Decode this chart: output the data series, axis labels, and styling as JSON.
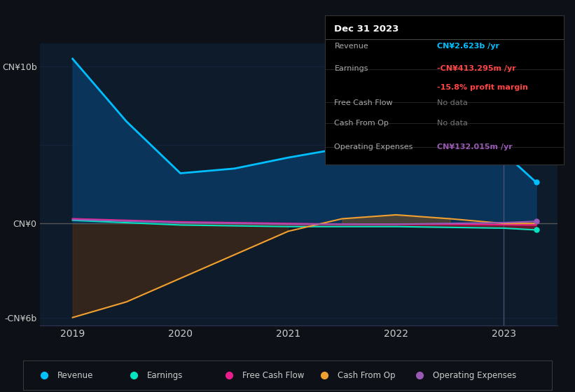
{
  "background_color": "#0d1117",
  "plot_bg_color": "#0d1b2a",
  "y_label_top": "CN¥10b",
  "y_label_bottom": "-CN¥6b",
  "x_ticks": [
    2019,
    2020,
    2021,
    2022,
    2023
  ],
  "years": [
    2019,
    2019.5,
    2020,
    2020.5,
    2021,
    2021.5,
    2022,
    2022.5,
    2023,
    2023.3
  ],
  "revenue": [
    10.5,
    6.5,
    3.2,
    3.5,
    4.2,
    4.8,
    5.3,
    4.9,
    4.5,
    2.623
  ],
  "earnings": [
    0.2,
    0.05,
    -0.1,
    -0.15,
    -0.2,
    -0.2,
    -0.2,
    -0.25,
    -0.3,
    -0.413
  ],
  "free_cash_flow": [
    0.3,
    0.2,
    0.1,
    0.05,
    0.0,
    -0.05,
    -0.05,
    -0.05,
    -0.08,
    -0.1
  ],
  "cash_from_op": [
    -6.0,
    -5.0,
    -3.5,
    -2.0,
    -0.5,
    0.3,
    0.55,
    0.3,
    0.0,
    0.0
  ],
  "operating_expenses": [
    0.25,
    0.15,
    0.05,
    0.0,
    -0.05,
    -0.05,
    -0.05,
    0.0,
    0.05,
    0.132
  ],
  "revenue_color": "#00bfff",
  "revenue_fill": "#0a3d6b",
  "earnings_color": "#00e5c0",
  "earnings_fill_neg": "#7b1c2e",
  "free_cash_flow_color": "#e91e8c",
  "cash_from_op_color": "#f0a030",
  "operating_expenses_color": "#9b59b6",
  "zero_line_color": "#555555",
  "grid_color": "#1e3050",
  "text_color": "#cccccc",
  "vline_x": 2023,
  "vline_color": "#333355",
  "info_box": {
    "title": "Dec 31 2023",
    "revenue_label": "Revenue",
    "revenue_value": "CN¥2.623b /yr",
    "revenue_value_color": "#00bfff",
    "earnings_label": "Earnings",
    "earnings_value": "-CN¥413.295m /yr",
    "earnings_value_color": "#ff4444",
    "profit_margin": "-15.8% profit margin",
    "profit_margin_color": "#ff4444",
    "fcf_label": "Free Cash Flow",
    "fcf_value": "No data",
    "cash_label": "Cash From Op",
    "cash_value": "No data",
    "opex_label": "Operating Expenses",
    "opex_value": "CN¥132.015m /yr",
    "opex_value_color": "#9b59b6"
  },
  "legend": [
    {
      "label": "Revenue",
      "color": "#00bfff"
    },
    {
      "label": "Earnings",
      "color": "#00e5c0"
    },
    {
      "label": "Free Cash Flow",
      "color": "#e91e8c"
    },
    {
      "label": "Cash From Op",
      "color": "#f0a030"
    },
    {
      "label": "Operating Expenses",
      "color": "#9b59b6"
    }
  ]
}
